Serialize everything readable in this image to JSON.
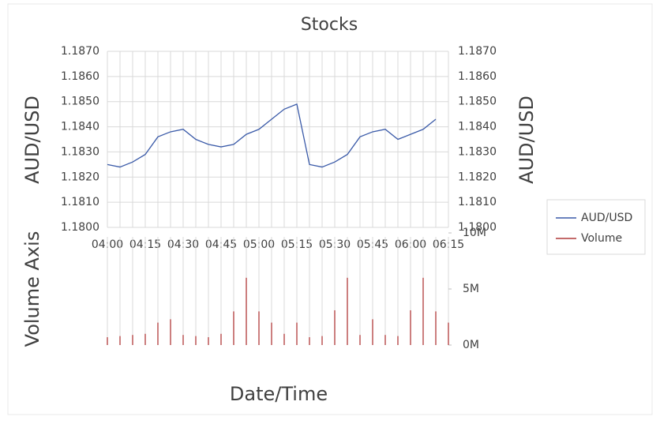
{
  "chart_data": [
    {
      "type": "line",
      "title": "Stocks",
      "ylabel": "AUD/USD",
      "categories": [
        "04:00",
        null,
        null,
        "04:15",
        null,
        null,
        "04:30",
        null,
        null,
        "04:45",
        null,
        null,
        "05:00",
        null,
        null,
        "05:15",
        null,
        null,
        "05:30",
        null,
        null,
        "05:45",
        null,
        null,
        "06:00",
        null,
        null,
        "06:15"
      ],
      "series": [
        {
          "name": "AUD/USD",
          "color": "#3a5aa8",
          "values": [
            1.1825,
            1.1824,
            1.1826,
            1.1829,
            1.1836,
            1.1838,
            1.1839,
            1.1835,
            1.1833,
            1.1832,
            1.1833,
            1.1837,
            1.1839,
            1.1843,
            1.1847,
            1.1849,
            1.1825,
            1.1824,
            1.1826,
            1.1829,
            1.1836,
            1.1838,
            1.1839,
            1.1835,
            1.1837,
            1.1839,
            1.1843,
            null
          ]
        }
      ],
      "ylim": [
        1.18,
        1.187
      ],
      "yticks": [
        {
          "value": 1.18,
          "label": "1.1800"
        },
        {
          "value": 1.181,
          "label": "1.1810"
        },
        {
          "value": 1.182,
          "label": "1.1820"
        },
        {
          "value": 1.183,
          "label": "1.1830"
        },
        {
          "value": 1.184,
          "label": "1.1840"
        },
        {
          "value": 1.185,
          "label": "1.1850"
        },
        {
          "value": 1.186,
          "label": "1.1860"
        },
        {
          "value": 1.187,
          "label": "1.1870"
        }
      ],
      "grid": true,
      "legend": "right"
    },
    {
      "type": "bar",
      "xlabel": "Date/Time",
      "ylabel": "Volume Axis",
      "series": [
        {
          "name": "Volume",
          "color": "#b03a3a",
          "values": [
            0.7,
            0.8,
            0.9,
            1.0,
            2.0,
            2.3,
            0.9,
            0.8,
            0.7,
            1.0,
            3.0,
            6.0,
            3.0,
            2.0,
            1.0,
            2.0,
            0.7,
            0.8,
            3.1,
            6.0,
            0.9,
            2.3,
            0.9,
            0.8,
            3.1,
            6.0,
            3.0,
            2.0
          ]
        }
      ],
      "ylim": [
        0,
        10
      ],
      "yticks": [
        {
          "value": 0,
          "label": "0M"
        },
        {
          "value": 5,
          "label": "5M"
        },
        {
          "value": 10,
          "label": "10M"
        }
      ]
    }
  ]
}
